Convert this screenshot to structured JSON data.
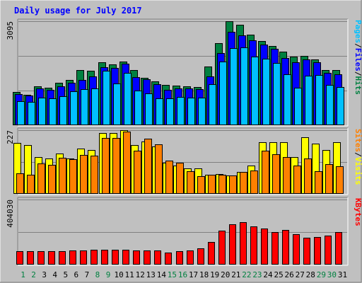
{
  "chart_data": [
    {
      "type": "bar",
      "title": "Daily usage for July 2017",
      "x": [
        "1",
        "2",
        "3",
        "4",
        "5",
        "6",
        "7",
        "8",
        "9",
        "10",
        "11",
        "12",
        "13",
        "14",
        "15",
        "16",
        "17",
        "18",
        "19",
        "20",
        "21",
        "22",
        "23",
        "24",
        "25",
        "26",
        "27",
        "28",
        "29",
        "30",
        "31"
      ],
      "weekend_days": [
        "1",
        "2",
        "8",
        "9",
        "15",
        "16",
        "22",
        "23",
        "29",
        "30"
      ],
      "ytick": "3095",
      "ylim": [
        0,
        3095
      ],
      "legend": [
        {
          "label": "Pages",
          "color": "#00C0FF"
        },
        {
          "label": "Files",
          "color": "#0000FF"
        },
        {
          "label": "Hits",
          "color": "#008040"
        }
      ],
      "series": [
        {
          "name": "Hits",
          "color": "#008040",
          "values": [
            993,
            915,
            1163,
            1125,
            1265,
            1356,
            1640,
            1630,
            1864,
            1820,
            1901,
            1650,
            1417,
            1296,
            1195,
            1173,
            1149,
            1134,
            1758,
            2434,
            3089,
            2994,
            2701,
            2509,
            2365,
            2183,
            2044,
            2065,
            1966,
            1642,
            1636
          ]
        },
        {
          "name": "Files",
          "color": "#0000FF",
          "values": [
            932,
            880,
            1095,
            1061,
            1155,
            1271,
            1350,
            1443,
            1720,
            1708,
            1826,
            1422,
            1366,
            1213,
            1047,
            1102,
            1103,
            1077,
            1460,
            2147,
            2773,
            2673,
            2534,
            2391,
            2264,
            1994,
            1880,
            1964,
            1865,
            1563,
            1506
          ]
        },
        {
          "name": "Pages",
          "color": "#00C0FF",
          "values": [
            710,
            688,
            826,
            806,
            865,
            1002,
            1078,
            1086,
            1628,
            1250,
            1552,
            1030,
            950,
            793,
            810,
            843,
            827,
            818,
            1223,
            1896,
            2303,
            2315,
            2051,
            1989,
            1857,
            1521,
            1126,
            1480,
            1500,
            1207,
            1143
          ]
        }
      ]
    },
    {
      "type": "bar",
      "ytick": "227",
      "ylim": [
        0,
        227
      ],
      "legend": [
        {
          "label": "Sites",
          "color": "#FF8000"
        },
        {
          "label": "Visits",
          "color": "#FFFF00"
        }
      ],
      "series": [
        {
          "name": "Visits",
          "color": "#FFFF00",
          "values": [
            181,
            174,
            131,
            127,
            145,
            127,
            162,
            157,
            216,
            218,
            228,
            174,
            187,
            168,
            111,
            100,
            90,
            90,
            68,
            70,
            66,
            77,
            101,
            185,
            185,
            185,
            130,
            202,
            179,
            157,
            184
          ]
        },
        {
          "name": "Sites",
          "color": "#FF8000",
          "values": [
            72,
            68,
            109,
            104,
            128,
            123,
            138,
            135,
            199,
            200,
            222,
            154,
            196,
            177,
            119,
            111,
            81,
            64,
            69,
            67,
            65,
            77,
            83,
            154,
            140,
            130,
            101,
            127,
            80,
            107,
            99
          ]
        }
      ]
    },
    {
      "type": "bar",
      "ytick": "404030",
      "ylim": [
        0,
        404030
      ],
      "legend": [
        {
          "label": "KBytes",
          "color": "#FF0000"
        }
      ],
      "series": [
        {
          "name": "KBytes",
          "color": "#FF0000",
          "values": [
            83000,
            82000,
            83000,
            84000,
            85000,
            86000,
            89000,
            93000,
            94000,
            91000,
            92000,
            87000,
            88000,
            89000,
            76000,
            83000,
            88000,
            99000,
            140000,
            210000,
            250000,
            262000,
            235000,
            225000,
            200000,
            215000,
            190000,
            165000,
            170000,
            178000,
            200000
          ]
        }
      ]
    }
  ]
}
